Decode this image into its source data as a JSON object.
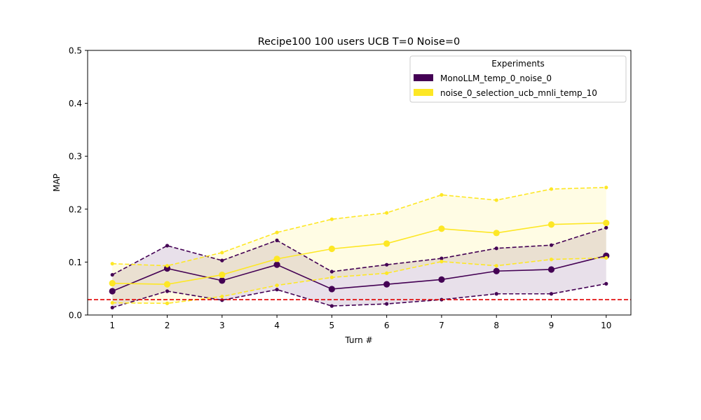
{
  "chart_data": {
    "type": "line",
    "title": "Recipe100 100 users UCB T=0 Noise=0",
    "xlabel": "Turn #",
    "ylabel": "MAP",
    "x": [
      1,
      2,
      3,
      4,
      5,
      6,
      7,
      8,
      9,
      10
    ],
    "xlim": [
      0.55,
      10.45
    ],
    "ylim": [
      0,
      0.5
    ],
    "yticks": [
      0.0,
      0.1,
      0.2,
      0.3,
      0.4,
      0.5
    ],
    "ytick_labels": [
      "0.0",
      "0.1",
      "0.2",
      "0.3",
      "0.4",
      "0.5"
    ],
    "xtick_labels": [
      "1",
      "2",
      "3",
      "4",
      "5",
      "6",
      "7",
      "8",
      "9",
      "10"
    ],
    "grid": false,
    "legend": {
      "title": "Experiments",
      "placement": "top-right"
    },
    "reference_line": {
      "y": 0.029,
      "color": "#e00000",
      "style": "dashed"
    },
    "series": [
      {
        "name": "MonoLLM_temp_0_noise_0",
        "color": "#440154",
        "fill_opacity": 0.12,
        "mean": [
          0.045,
          0.088,
          0.065,
          0.095,
          0.049,
          0.058,
          0.067,
          0.083,
          0.086,
          0.112
        ],
        "upper": [
          0.076,
          0.131,
          0.103,
          0.141,
          0.082,
          0.095,
          0.107,
          0.126,
          0.132,
          0.165
        ],
        "lower": [
          0.014,
          0.045,
          0.028,
          0.048,
          0.017,
          0.021,
          0.029,
          0.04,
          0.04,
          0.059
        ]
      },
      {
        "name": "noise_0_selection_ucb_mnli_temp_10",
        "color": "#fde725",
        "fill_opacity": 0.12,
        "mean": [
          0.06,
          0.058,
          0.076,
          0.106,
          0.125,
          0.135,
          0.163,
          0.155,
          0.171,
          0.174
        ],
        "upper": [
          0.097,
          0.093,
          0.118,
          0.156,
          0.181,
          0.193,
          0.227,
          0.217,
          0.238,
          0.241
        ],
        "lower": [
          0.023,
          0.022,
          0.035,
          0.056,
          0.071,
          0.079,
          0.101,
          0.093,
          0.105,
          0.108
        ]
      }
    ]
  }
}
